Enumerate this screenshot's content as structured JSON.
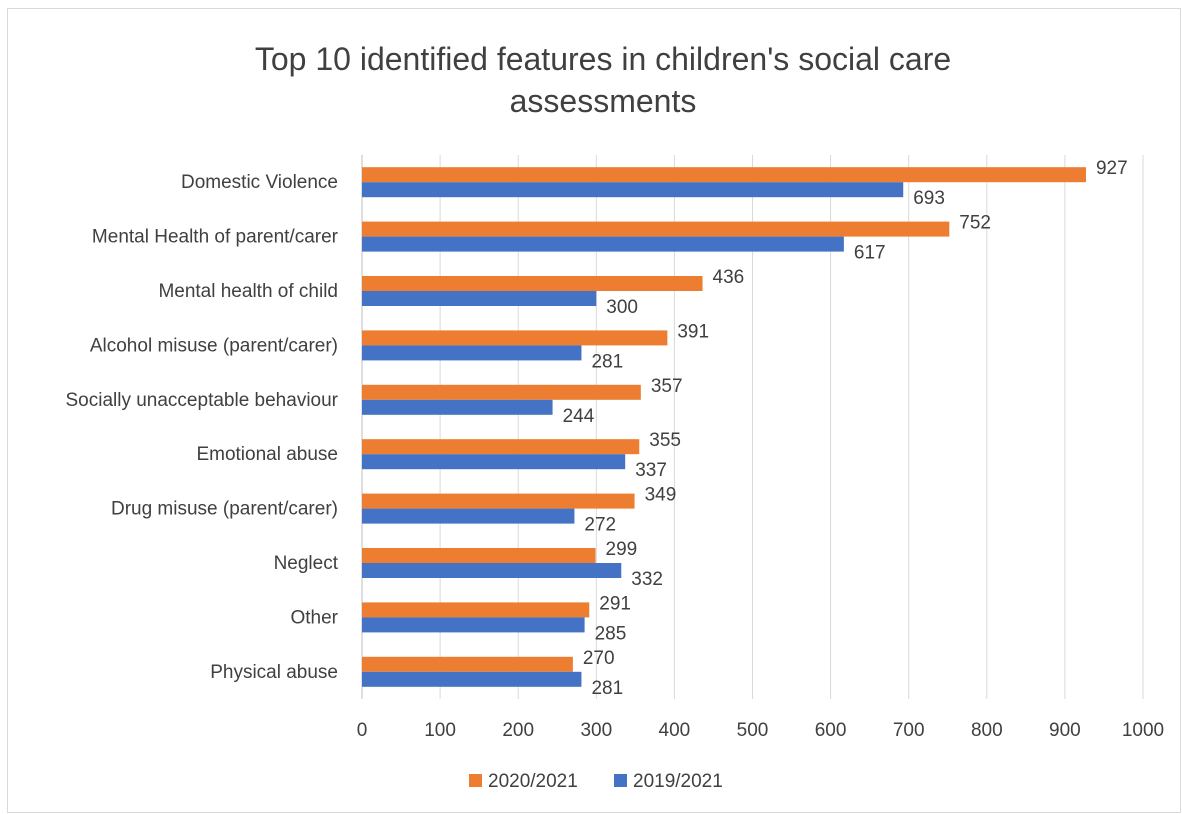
{
  "chart_data": {
    "type": "bar",
    "orientation": "horizontal",
    "title": "Top 10 identified features in children's social care assessments",
    "title_lines": [
      "Top 10 identified features in children's social care",
      "assessments"
    ],
    "xlabel": "",
    "ylabel": "",
    "xlim": [
      0,
      1000
    ],
    "x_ticks": [
      0,
      100,
      200,
      300,
      400,
      500,
      600,
      700,
      800,
      900,
      1000
    ],
    "grid": true,
    "legend_position": "bottom",
    "categories": [
      "Domestic Violence",
      "Mental Health of parent/carer",
      "Mental health of child",
      "Alcohol misuse (parent/carer)",
      "Socially unacceptable behaviour",
      "Emotional abuse",
      "Drug misuse (parent/carer)",
      "Neglect",
      "Other",
      "Physical abuse"
    ],
    "series": [
      {
        "name": "2020/2021",
        "color": "#ED7D31",
        "values": [
          927,
          752,
          436,
          391,
          357,
          355,
          349,
          299,
          291,
          270
        ]
      },
      {
        "name": "2019/2021",
        "color": "#4472C4",
        "values": [
          693,
          617,
          300,
          281,
          244,
          337,
          272,
          332,
          285,
          281
        ]
      }
    ]
  }
}
